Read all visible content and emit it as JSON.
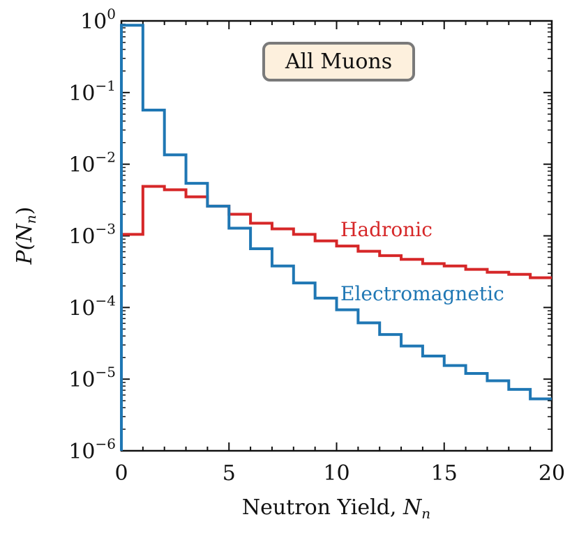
{
  "chart_data": {
    "type": "line",
    "step": true,
    "title": "All Muons",
    "xlabel": "Neutron Yield, N_n",
    "xlabel_text": "Neutron Yield, ",
    "xlabel_var": "N",
    "xlabel_sub": "n",
    "ylabel": "P(N_n)",
    "ylabel_var": "P(N",
    "ylabel_sub": "n",
    "ylabel_close": ")",
    "xlim": [
      0,
      20
    ],
    "ylim_log10": [
      -6,
      0
    ],
    "yscale": "log",
    "x_ticks": [
      0,
      5,
      10,
      15,
      20
    ],
    "y_tick_base": "10",
    "y_tick_exponents": [
      "0",
      "−1",
      "−2",
      "−3",
      "−4",
      "−5",
      "−6"
    ],
    "legend_placement": "top-center",
    "bin_edges": [
      0,
      1,
      2,
      3,
      4,
      5,
      6,
      7,
      8,
      9,
      10,
      11,
      12,
      13,
      14,
      15,
      16,
      17,
      18,
      19,
      20
    ],
    "series": [
      {
        "name": "Hadronic",
        "color": "#d62728",
        "values": [
          0.00105,
          0.0049,
          0.0044,
          0.0035,
          0.0026,
          0.002,
          0.0015,
          0.00125,
          0.00105,
          0.00085,
          0.00072,
          0.00061,
          0.00053,
          0.00047,
          0.00041,
          0.00038,
          0.00034,
          0.00031,
          0.00029,
          0.00026
        ]
      },
      {
        "name": "Electromagnetic",
        "color": "#1f77b4",
        "values": [
          0.87,
          0.057,
          0.0135,
          0.0054,
          0.0026,
          0.00128,
          0.00066,
          0.00038,
          0.00022,
          0.000135,
          9.3e-05,
          6.1e-05,
          4.2e-05,
          2.9e-05,
          2.1e-05,
          1.55e-05,
          1.2e-05,
          9.5e-06,
          7.2e-06,
          5.3e-06
        ]
      }
    ]
  }
}
